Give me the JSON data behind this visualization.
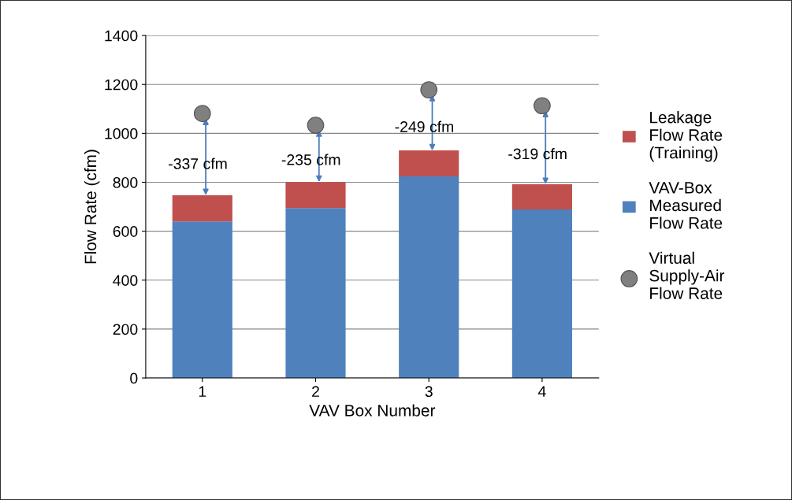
{
  "chart_data": {
    "type": "bar",
    "stacked": true,
    "xlabel": "VAV Box Number",
    "ylabel": "Flow Rate (cfm)",
    "categories": [
      "1",
      "2",
      "3",
      "4"
    ],
    "series": [
      {
        "name": "VAV-Box\nMeasured\nFlow Rate",
        "color": "#4f81bd",
        "values": [
          640,
          695,
          824,
          689
        ]
      },
      {
        "name": "Leakage\nFlow Rate\n(Training)",
        "color": "#c0504d",
        "values": [
          107,
          106,
          106,
          103
        ]
      },
      {
        "name": "Virtual\nSupply-Air\nFlow Rate",
        "type": "scatter",
        "color": "#808080",
        "values": [
          1081,
          1033,
          1178,
          1113
        ]
      }
    ],
    "marker": "circle",
    "ylim": [
      0,
      1400
    ],
    "yticks": [
      0,
      200,
      400,
      600,
      800,
      1000,
      1200,
      1400
    ],
    "grid": "y",
    "legend": "right",
    "annotations": [
      "-337 cfm",
      "-235 cfm",
      "-249 cfm",
      "-319 cfm"
    ]
  }
}
